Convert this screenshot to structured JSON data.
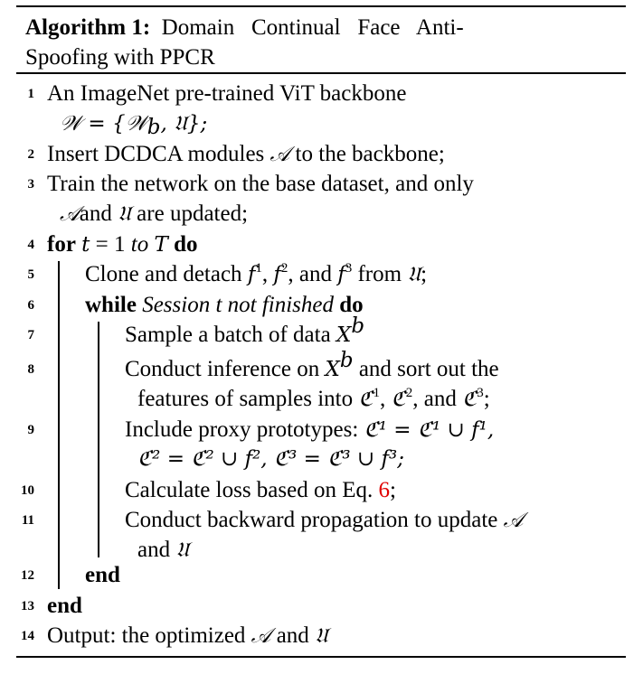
{
  "algorithm": {
    "label": "Algorithm 1:",
    "title_line1": "Domain   Continual   Face   Anti-",
    "title_line2": "Spoofing with PPCR"
  },
  "steps": [
    {
      "num": "1",
      "a": "An ImageNet pre-trained ViT backbone",
      "b": "𝒲 = {𝒲",
      "b_sub": "b",
      "b_end": ", 𝔘};"
    },
    {
      "num": "2",
      "a": "Insert DCDCA modules ",
      "cal": "𝒜",
      "a2": " to the backbone;"
    },
    {
      "num": "3",
      "a": "Train the network on the base dataset, and only",
      "cal": "𝒜",
      "b": "and ",
      "cal2": "𝔘",
      "b2": " are updated;"
    },
    {
      "num": "4",
      "kw1": "for",
      "m1": "t",
      "eq": " = 1 ",
      "to": "to",
      "m2": "T",
      "kw2": "do"
    },
    {
      "num": "5",
      "a": "Clone and detach ",
      "m1": "f",
      "s1": "1",
      "m2": "f",
      "s2": "2",
      "m3": "f",
      "s3": "3",
      "a2": " from ",
      "cal": "𝔘",
      "end": ";"
    },
    {
      "num": "6",
      "kw1": "while",
      "it": "Session t not finished",
      "kw2": "do"
    },
    {
      "num": "7",
      "a": "Sample a batch of data ",
      "m": "X",
      "s": "b"
    },
    {
      "num": "8",
      "a": "Conduct inference on ",
      "m": "X",
      "s": "b",
      "a2": " and sort out the",
      "b": "features of samples into ",
      "c1": "ℭ",
      "c1s": "1",
      "c2": "ℭ",
      "c2s": "2",
      "c3": "ℭ",
      "c3s": "3",
      "end": ";"
    },
    {
      "num": "9",
      "a": "Include proxy prototypes: ",
      "row1": "ℭ¹ = ℭ¹ ∪ f¹,",
      "row2": "ℭ² = ℭ² ∪ f², ℭ³ = ℭ³ ∪ f³;"
    },
    {
      "num": "10",
      "a": "Calculate loss based on Eq. ",
      "ref": "6",
      "end": ";"
    },
    {
      "num": "11",
      "a": "Conduct backward propagation to update ",
      "cal": "𝒜",
      "b": "and ",
      "cal2": "𝔘"
    },
    {
      "num": "12",
      "kw": "end"
    },
    {
      "num": "13",
      "kw": "end"
    },
    {
      "num": "14",
      "a": "Output: the optimized ",
      "cal": "𝒜",
      "a2": " and ",
      "cal2": "𝔘"
    }
  ]
}
